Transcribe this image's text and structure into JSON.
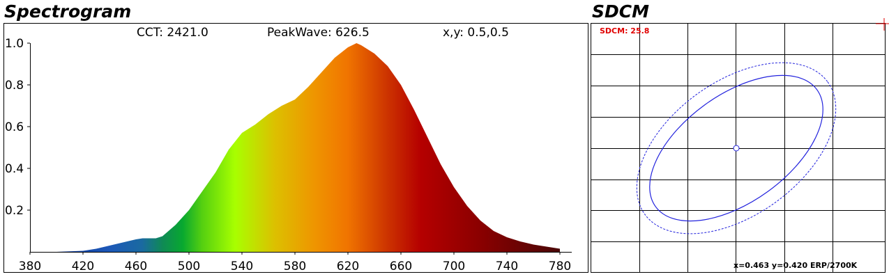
{
  "spectrogram": {
    "heading": "Spectrogram",
    "cct_text": "CCT: 2421.0",
    "peak_text": "PeakWave: 626.5",
    "xy_text": "x,y: 0.5,0.5"
  },
  "sdcm": {
    "heading": "SDCM",
    "value_text": "SDCM: 25.8",
    "coords_text": "x=0.463 y=0.420 ERP/2700K",
    "colors": {
      "ellipse": "#2222dd",
      "marker": "#e00000",
      "grid": "#000000"
    }
  },
  "chart_data": [
    {
      "type": "area",
      "title": "Spectrogram",
      "xlabel": "",
      "ylabel": "",
      "xlim": [
        380,
        780
      ],
      "ylim": [
        0,
        1.0
      ],
      "x_ticks": [
        380,
        420,
        460,
        500,
        540,
        580,
        620,
        660,
        700,
        740,
        780
      ],
      "y_ticks": [
        0.2,
        0.4,
        0.6,
        0.8,
        1.0
      ],
      "y_tick_labels": [
        "0.2",
        "0.4",
        "0.6",
        "0.8",
        "1.0"
      ],
      "grid": false,
      "fill": "visible-spectrum gradient",
      "series": [
        {
          "x": [
            380,
            400,
            420,
            430,
            440,
            450,
            460,
            465,
            470,
            475,
            480,
            490,
            500,
            510,
            520,
            530,
            540,
            550,
            560,
            570,
            580,
            590,
            600,
            610,
            620,
            626.5,
            630,
            640,
            650,
            660,
            670,
            680,
            690,
            700,
            710,
            720,
            730,
            740,
            750,
            760,
            770,
            780
          ],
          "y": [
            0.0,
            0.0,
            0.005,
            0.015,
            0.03,
            0.045,
            0.06,
            0.065,
            0.065,
            0.065,
            0.075,
            0.13,
            0.2,
            0.29,
            0.38,
            0.49,
            0.57,
            0.61,
            0.66,
            0.7,
            0.73,
            0.79,
            0.86,
            0.93,
            0.98,
            1.0,
            0.99,
            0.95,
            0.89,
            0.8,
            0.68,
            0.55,
            0.42,
            0.31,
            0.22,
            0.15,
            0.1,
            0.07,
            0.05,
            0.035,
            0.025,
            0.015
          ]
        }
      ]
    },
    {
      "type": "scatter",
      "title": "SDCM",
      "grid": true,
      "legend": "none",
      "series": [
        {
          "x": [
            0.463
          ],
          "y": [
            0.42
          ]
        }
      ]
    }
  ]
}
